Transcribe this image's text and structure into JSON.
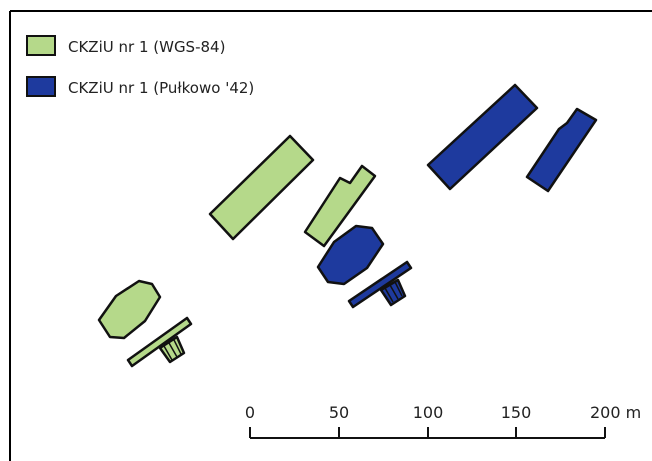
{
  "legend": {
    "items": [
      {
        "label": "CKZiU nr 1 (WGS-84)",
        "color": "#b5d98a"
      },
      {
        "label": "CKZiU nr 1 (Pułkowo '42)",
        "color": "#1e3a9e"
      }
    ]
  },
  "scale_bar": {
    "ticks": [
      "0",
      "50",
      "100",
      "150",
      "200 m"
    ]
  },
  "colors": {
    "wgs84_fill": "#b5d98a",
    "pulkowo_fill": "#1e3a9e",
    "outline": "#111111",
    "frame": "#000000"
  }
}
